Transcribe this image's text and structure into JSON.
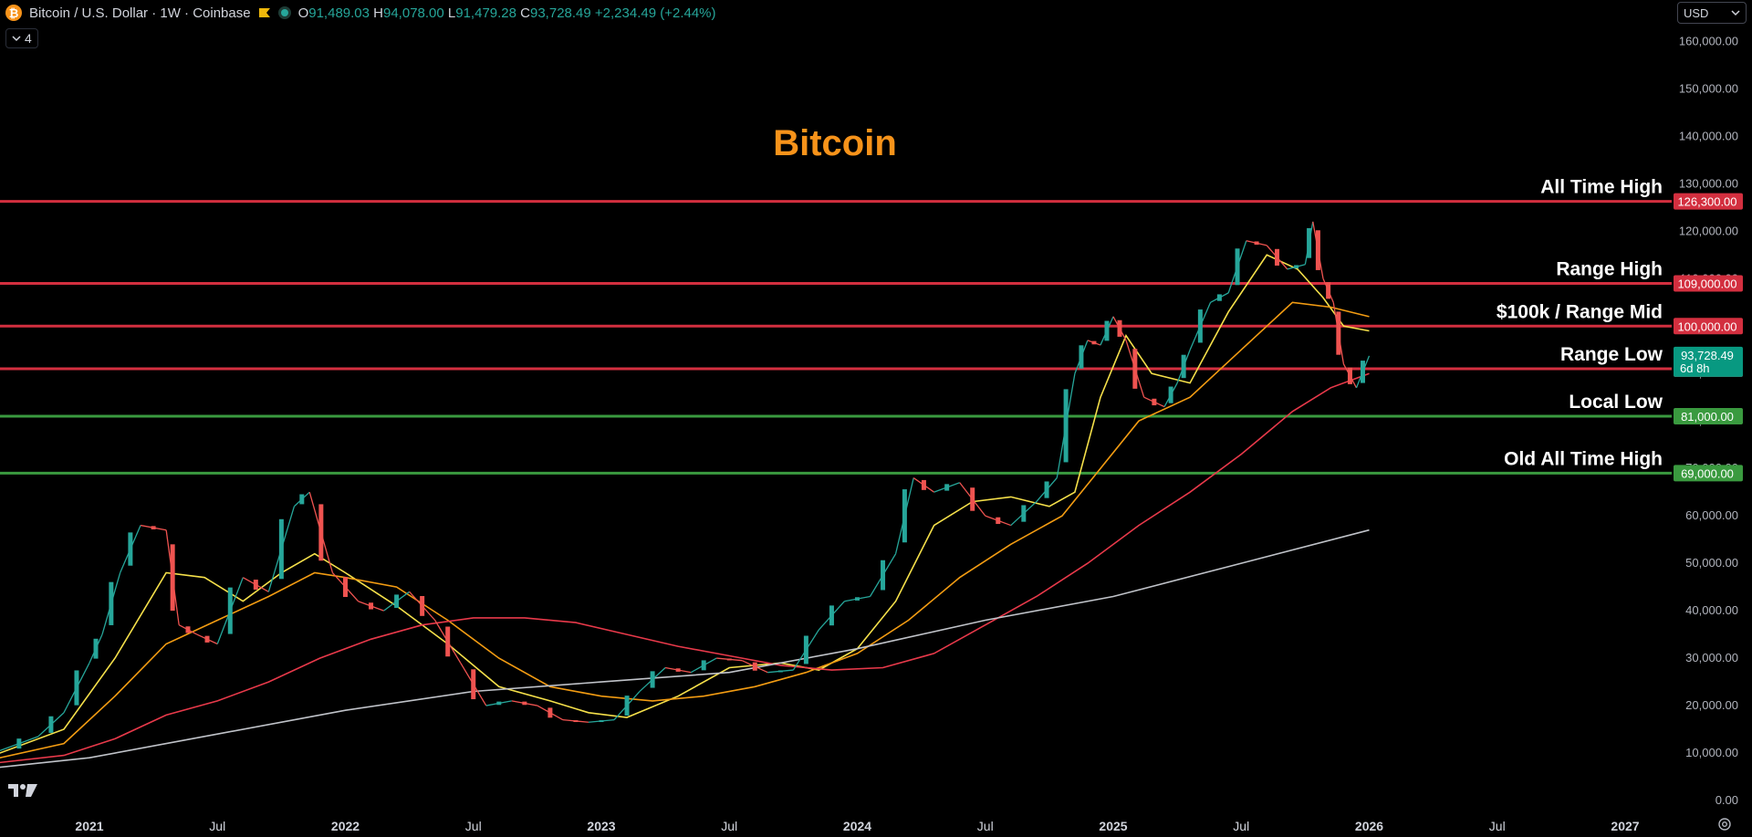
{
  "header": {
    "symbol_title": "Bitcoin / U.S. Dollar · 1W · Coinbase",
    "open_label": "O",
    "open": "91,489.03",
    "high_label": "H",
    "high": "94,078.00",
    "low_label": "L",
    "low": "91,479.28",
    "close_label": "C",
    "close": "93,728.49",
    "change": "+2,234.49 (+2.44%)"
  },
  "indicators_collapse": {
    "count": "4"
  },
  "currency": "USD",
  "chart_data": {
    "type": "line",
    "title": "Bitcoin",
    "y_axis": {
      "ylim": [
        0,
        165000
      ],
      "ticks": [
        "0.00",
        "10,000.00",
        "20,000.00",
        "30,000.00",
        "40,000.00",
        "50,000.00",
        "60,000.00",
        "70,000.00",
        "80,000.00",
        "90,000.00",
        "100,000.00",
        "110,000.00",
        "120,000.00",
        "130,000.00",
        "140,000.00",
        "150,000.00",
        "160,000.00"
      ]
    },
    "x_axis": {
      "labels": [
        {
          "text": "2021",
          "t": 2021.0,
          "year": true
        },
        {
          "text": "Jul",
          "t": 2021.5,
          "year": false
        },
        {
          "text": "2022",
          "t": 2022.0,
          "year": true
        },
        {
          "text": "Jul",
          "t": 2022.5,
          "year": false
        },
        {
          "text": "2023",
          "t": 2023.0,
          "year": true
        },
        {
          "text": "Jul",
          "t": 2023.5,
          "year": false
        },
        {
          "text": "2024",
          "t": 2024.0,
          "year": true
        },
        {
          "text": "Jul",
          "t": 2024.5,
          "year": false
        },
        {
          "text": "2025",
          "t": 2025.0,
          "year": true
        },
        {
          "text": "Jul",
          "t": 2025.5,
          "year": false
        },
        {
          "text": "2026",
          "t": 2026.0,
          "year": true
        },
        {
          "text": "Jul",
          "t": 2026.5,
          "year": false
        },
        {
          "text": "2027",
          "t": 2027.0,
          "year": true
        }
      ]
    },
    "levels": [
      {
        "name": "All Time High",
        "value": 126300,
        "badge": "126,300.00",
        "color": "#d32f3f"
      },
      {
        "name": "Range High",
        "value": 109000,
        "badge": "109,000.00",
        "color": "#d32f3f"
      },
      {
        "name": "$100k / Range Mid",
        "value": 100000,
        "badge": "100,000.00",
        "color": "#d32f3f"
      },
      {
        "name": "Range Low",
        "value": 91000,
        "badge": "91,000.00",
        "color": "#d32f3f"
      },
      {
        "name": "Local Low",
        "value": 81000,
        "badge": "81,000.00",
        "color": "#3a9a3f"
      },
      {
        "name": "Old All Time High",
        "value": 69000,
        "badge": "69,000.00",
        "color": "#3a9a3f"
      }
    ],
    "last_price": {
      "value": 93728.49,
      "label": "93,728.49",
      "countdown": "6d 8h",
      "color": "#089981"
    },
    "price_series": {
      "t": [
        2020.65,
        2020.8,
        2020.9,
        2021.0,
        2021.05,
        2021.12,
        2021.2,
        2021.3,
        2021.35,
        2021.42,
        2021.5,
        2021.6,
        2021.7,
        2021.8,
        2021.86,
        2021.95,
        2022.05,
        2022.15,
        2022.25,
        2022.35,
        2022.45,
        2022.55,
        2022.65,
        2022.75,
        2022.85,
        2022.95,
        2023.05,
        2023.15,
        2023.25,
        2023.35,
        2023.45,
        2023.55,
        2023.65,
        2023.75,
        2023.85,
        2023.95,
        2024.05,
        2024.15,
        2024.22,
        2024.3,
        2024.4,
        2024.5,
        2024.6,
        2024.7,
        2024.78,
        2024.85,
        2024.9,
        2024.95,
        2025.0,
        2025.05,
        2025.12,
        2025.2,
        2025.25,
        2025.3,
        2025.38,
        2025.45,
        2025.52,
        2025.6,
        2025.68,
        2025.75,
        2025.78,
        2025.82,
        2025.86,
        2025.9,
        2025.95,
        2026.0
      ],
      "v": [
        10500,
        13500,
        18500,
        29000,
        35000,
        48000,
        58000,
        57000,
        37000,
        35000,
        33000,
        47000,
        44000,
        62000,
        65000,
        48000,
        42000,
        40000,
        44000,
        38000,
        29000,
        20000,
        21000,
        20000,
        17000,
        16500,
        17000,
        23000,
        28000,
        27000,
        30000,
        29500,
        27000,
        27500,
        36000,
        42000,
        43000,
        52000,
        68000,
        65000,
        67000,
        60000,
        58000,
        63000,
        68000,
        90000,
        97000,
        96000,
        102000,
        97000,
        85000,
        83000,
        88000,
        95000,
        105000,
        107000,
        118000,
        117000,
        112000,
        113000,
        122000,
        110000,
        105000,
        92000,
        87000,
        93728
      ]
    },
    "moving_averages": [
      {
        "color": "#f5e04a",
        "t": [
          2020.65,
          2020.9,
          2021.1,
          2021.3,
          2021.45,
          2021.6,
          2021.75,
          2021.88,
          2022.0,
          2022.2,
          2022.4,
          2022.6,
          2022.8,
          2022.95,
          2023.1,
          2023.3,
          2023.5,
          2023.7,
          2023.85,
          2024.0,
          2024.15,
          2024.3,
          2024.45,
          2024.6,
          2024.75,
          2024.85,
          2024.95,
          2025.05,
          2025.15,
          2025.3,
          2025.45,
          2025.6,
          2025.72,
          2025.82,
          2025.9,
          2026.0
        ],
        "v": [
          10000,
          15000,
          30000,
          48000,
          47000,
          42000,
          48000,
          52000,
          48000,
          41000,
          33000,
          24000,
          21000,
          18500,
          17500,
          22000,
          28000,
          29000,
          27500,
          32000,
          42000,
          58000,
          63000,
          64000,
          62000,
          65000,
          85000,
          98000,
          90000,
          88000,
          103000,
          115000,
          112000,
          106000,
          100000,
          99000
        ]
      },
      {
        "color": "#f39c12",
        "t": [
          2020.65,
          2020.9,
          2021.1,
          2021.3,
          2021.5,
          2021.7,
          2021.88,
          2022.0,
          2022.2,
          2022.4,
          2022.6,
          2022.8,
          2023.0,
          2023.2,
          2023.4,
          2023.6,
          2023.8,
          2024.0,
          2024.2,
          2024.4,
          2024.6,
          2024.8,
          2024.95,
          2025.1,
          2025.3,
          2025.5,
          2025.7,
          2025.85,
          2026.0
        ],
        "v": [
          9000,
          12000,
          22000,
          33000,
          38000,
          43000,
          48000,
          47000,
          45000,
          38000,
          30000,
          24000,
          22000,
          21000,
          22000,
          24000,
          27000,
          31000,
          38000,
          47000,
          54000,
          60000,
          70000,
          80000,
          85000,
          95000,
          105000,
          104000,
          102000
        ]
      },
      {
        "color": "#e8394a",
        "t": [
          2020.65,
          2020.9,
          2021.1,
          2021.3,
          2021.5,
          2021.7,
          2021.9,
          2022.1,
          2022.3,
          2022.5,
          2022.7,
          2022.9,
          2023.1,
          2023.3,
          2023.5,
          2023.7,
          2023.9,
          2024.1,
          2024.3,
          2024.5,
          2024.7,
          2024.9,
          2025.1,
          2025.3,
          2025.5,
          2025.7,
          2025.85,
          2026.0
        ],
        "v": [
          8000,
          9500,
          13000,
          18000,
          21000,
          25000,
          30000,
          34000,
          37000,
          38500,
          38500,
          37500,
          35000,
          32500,
          30500,
          28500,
          27500,
          28000,
          31000,
          37000,
          43000,
          50000,
          58000,
          65000,
          73000,
          82000,
          87000,
          90000
        ]
      },
      {
        "color": "#c0c3c9",
        "t": [
          2020.65,
          2021.0,
          2021.5,
          2022.0,
          2022.5,
          2023.0,
          2023.5,
          2024.0,
          2024.5,
          2025.0,
          2025.5,
          2026.0
        ],
        "v": [
          7000,
          9000,
          14000,
          19000,
          23000,
          25000,
          27000,
          32000,
          38000,
          43000,
          50000,
          57000
        ]
      }
    ]
  }
}
